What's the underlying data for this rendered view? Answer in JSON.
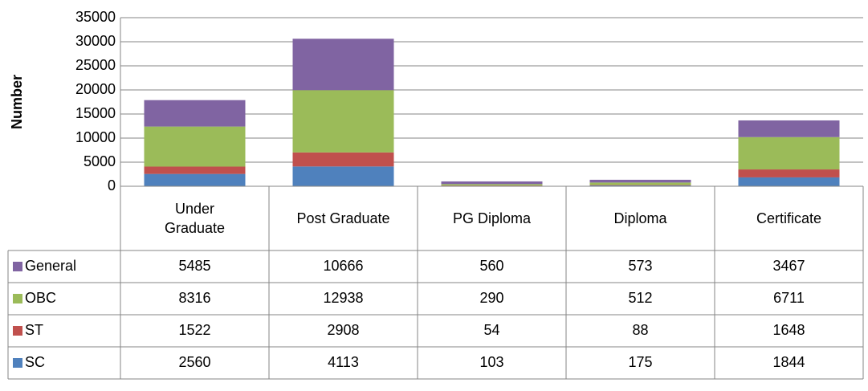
{
  "chart_data": {
    "type": "bar",
    "stacked": true,
    "y_label": "Number",
    "categories": [
      "Under Graduate",
      "Post Graduate",
      "PG Diploma",
      "Diploma",
      "Certificate"
    ],
    "series": [
      {
        "name": "SC",
        "color": "#4f81bd",
        "values": [
          2560,
          4113,
          103,
          175,
          1844
        ]
      },
      {
        "name": "ST",
        "color": "#c0504d",
        "values": [
          1522,
          2908,
          54,
          88,
          1648
        ]
      },
      {
        "name": "OBC",
        "color": "#9bbb59",
        "values": [
          8316,
          12938,
          290,
          512,
          6711
        ]
      },
      {
        "name": "General",
        "color": "#8064a2",
        "values": [
          5485,
          10666,
          560,
          573,
          3467
        ]
      }
    ],
    "ylim": [
      0,
      35000
    ],
    "yticks": [
      0,
      5000,
      10000,
      15000,
      20000,
      25000,
      30000,
      35000
    ],
    "grid": true,
    "data_table": true
  }
}
